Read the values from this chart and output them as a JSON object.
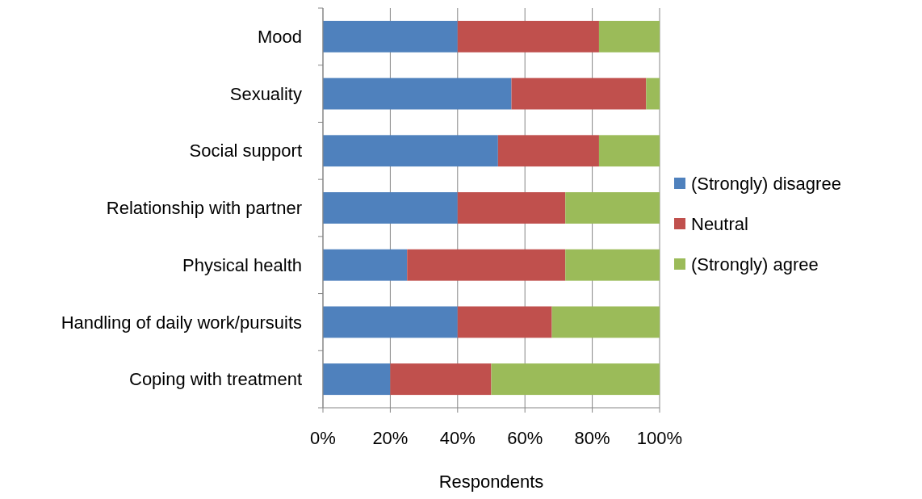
{
  "chart_data": {
    "type": "bar",
    "orientation": "horizontal",
    "stacked": true,
    "xlabel": "Respondents",
    "categories": [
      "Mood",
      "Sexuality",
      "Social support",
      "Relationship with partner",
      "Physical health",
      "Handling of daily work/pursuits",
      "Coping with treatment"
    ],
    "series": [
      {
        "name": "(Strongly) disagree",
        "color": "#4f81bd",
        "values": [
          40,
          56,
          52,
          40,
          25,
          40,
          20
        ]
      },
      {
        "name": "Neutral",
        "color": "#c0504d",
        "values": [
          42,
          40,
          30,
          32,
          47,
          28,
          30
        ]
      },
      {
        "name": "(Strongly) agree",
        "color": "#9bbb59",
        "values": [
          18,
          4,
          18,
          28,
          28,
          32,
          50
        ]
      }
    ],
    "xlim": [
      0,
      100
    ],
    "xticks": [
      {
        "value": 0,
        "label": "0%"
      },
      {
        "value": 20,
        "label": "20%"
      },
      {
        "value": 40,
        "label": "40%"
      },
      {
        "value": 60,
        "label": "60%"
      },
      {
        "value": 80,
        "label": "80%"
      },
      {
        "value": 100,
        "label": "100%"
      }
    ],
    "grid": "x",
    "legend": "right"
  }
}
